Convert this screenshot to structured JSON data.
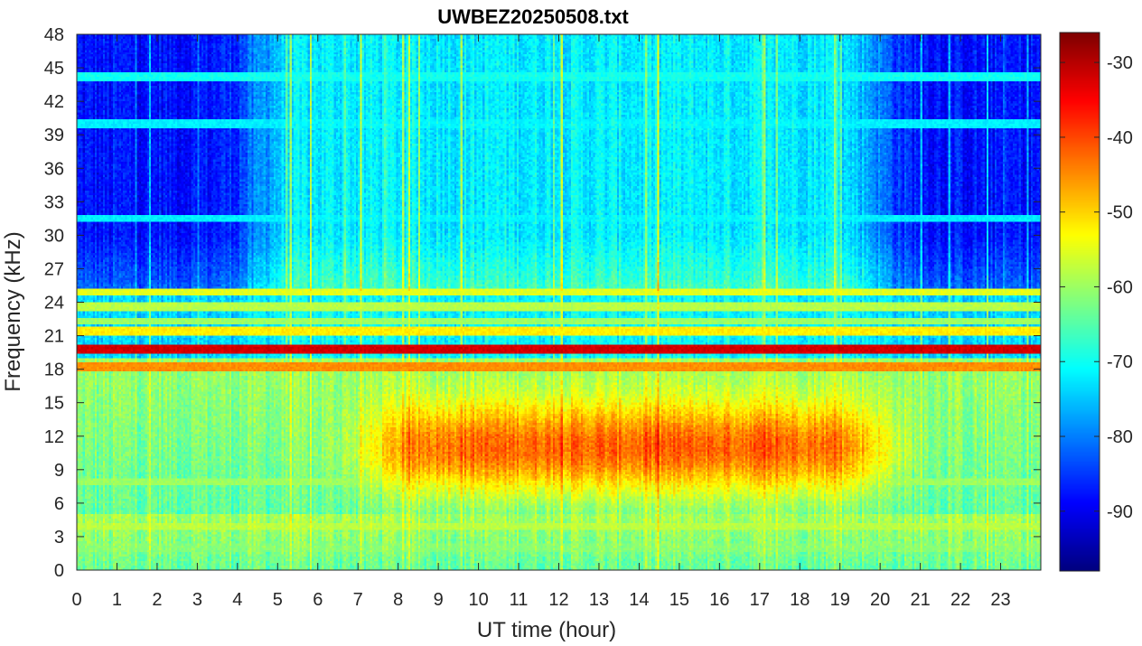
{
  "chart_data": {
    "type": "heatmap",
    "title": "UWBEZ20250508.txt",
    "xlabel": "UT time (hour)",
    "ylabel": "Frequency (kHz)",
    "xlim": [
      0,
      24
    ],
    "ylim": [
      0,
      48
    ],
    "x_ticks": [
      0,
      1,
      2,
      3,
      4,
      5,
      6,
      7,
      8,
      9,
      10,
      11,
      12,
      13,
      14,
      15,
      16,
      17,
      18,
      19,
      20,
      21,
      22,
      23
    ],
    "y_ticks": [
      0,
      3,
      6,
      9,
      12,
      15,
      18,
      21,
      24,
      27,
      30,
      33,
      36,
      39,
      42,
      45,
      48
    ],
    "colormap": "jet",
    "colorbar": {
      "range": [
        -98,
        -26
      ],
      "ticks": [
        -30,
        -40,
        -50,
        -60,
        -70,
        -80,
        -90
      ],
      "tick_labels": [
        "-30",
        "-40",
        "-50",
        "-60",
        "-70",
        "-80",
        "-90"
      ],
      "placement": "right"
    },
    "features": {
      "constant_tones_khz": [
        {
          "freq": 19.8,
          "level_db": -32
        },
        {
          "freq": 18.2,
          "level_db": -45
        },
        {
          "freq": 21.4,
          "level_db": -52
        },
        {
          "freq": 24.9,
          "level_db": -55
        },
        {
          "freq": 23.6,
          "level_db": -58
        },
        {
          "freq": 22.3,
          "level_db": -60
        },
        {
          "freq": 44.2,
          "level_db": -70
        },
        {
          "freq": 40.0,
          "level_db": -72
        },
        {
          "freq": 31.5,
          "level_db": -72
        },
        {
          "freq": 3.9,
          "level_db": -58
        },
        {
          "freq": 2.0,
          "level_db": -62
        },
        {
          "freq": 7.9,
          "level_db": -60
        }
      ],
      "daytime_enhancement": {
        "start_hour": 7.5,
        "end_hour": 20,
        "freq_range_khz": [
          5,
          17
        ],
        "peak_level_db": -45
      },
      "background_level_db": {
        "night_high_freq": -88,
        "day_high_freq": -72,
        "low_freq": -60
      }
    }
  }
}
